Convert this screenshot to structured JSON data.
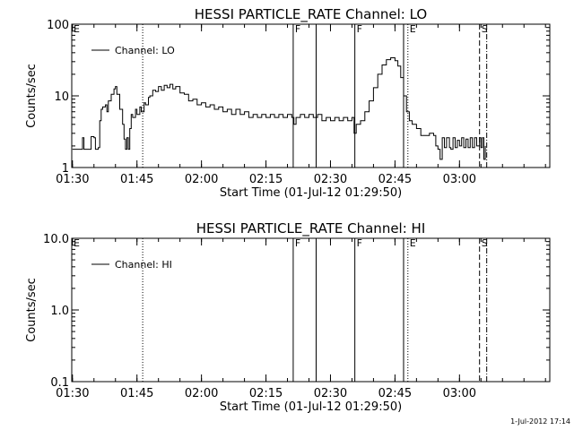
{
  "footer_timestamp": "1-Jul-2012 17:14",
  "chart_data": [
    {
      "type": "line",
      "title": "HESSI PARTICLE_RATE Channel: LO",
      "xlabel": "Start Time (01-Jul-12 01:29:50)",
      "ylabel": "Counts/sec",
      "yscale": "log",
      "ylim": [
        1,
        100
      ],
      "xlim": [
        "01:29:50",
        "03:21:00"
      ],
      "x_ticks": [
        "01:30",
        "01:45",
        "02:00",
        "02:15",
        "02:30",
        "02:45",
        "03:00"
      ],
      "y_ticks": [
        "1",
        "10",
        "100"
      ],
      "legend": {
        "label": "Channel: LO",
        "position": "top-left"
      },
      "series": [
        {
          "name": "Channel: LO",
          "points": [
            [
              "01:30:00",
              1.8
            ],
            [
              "01:31:00",
              1.8
            ],
            [
              "01:32:00",
              1.8
            ],
            [
              "01:32:20",
              2.6
            ],
            [
              "01:32:40",
              1.8
            ],
            [
              "01:34:00",
              1.8
            ],
            [
              "01:34:20",
              2.7
            ],
            [
              "01:35:00",
              2.6
            ],
            [
              "01:35:20",
              1.8
            ],
            [
              "01:36:00",
              1.9
            ],
            [
              "01:36:20",
              4.5
            ],
            [
              "01:36:40",
              6.5
            ],
            [
              "01:37:00",
              7.0
            ],
            [
              "01:37:40",
              7.5
            ],
            [
              "01:38:00",
              6.0
            ],
            [
              "01:38:20",
              8.5
            ],
            [
              "01:39:00",
              10.5
            ],
            [
              "01:39:40",
              12.5
            ],
            [
              "01:40:00",
              13.5
            ],
            [
              "01:40:20",
              10.5
            ],
            [
              "01:41:00",
              6.5
            ],
            [
              "01:41:40",
              4.0
            ],
            [
              "01:42:00",
              2.5
            ],
            [
              "01:42:20",
              1.8
            ],
            [
              "01:42:40",
              2.6
            ],
            [
              "01:43:00",
              1.8
            ],
            [
              "01:43:20",
              3.5
            ],
            [
              "01:43:40",
              5.5
            ],
            [
              "01:44:00",
              5.0
            ],
            [
              "01:44:40",
              6.5
            ],
            [
              "01:45:00",
              5.5
            ],
            [
              "01:45:40",
              7.0
            ],
            [
              "01:46:00",
              6.0
            ],
            [
              "01:46:40",
              8.0
            ],
            [
              "01:47:00",
              7.5
            ],
            [
              "01:47:40",
              9.5
            ],
            [
              "01:48:00",
              10.0
            ],
            [
              "01:48:40",
              12.0
            ],
            [
              "01:49:20",
              11.5
            ],
            [
              "01:50:00",
              13.5
            ],
            [
              "01:50:40",
              12.0
            ],
            [
              "01:51:20",
              14.0
            ],
            [
              "01:52:00",
              13.0
            ],
            [
              "01:52:40",
              14.5
            ],
            [
              "01:53:20",
              12.5
            ],
            [
              "01:54:00",
              13.5
            ],
            [
              "01:55:00",
              11.0
            ],
            [
              "01:56:00",
              10.5
            ],
            [
              "01:57:00",
              8.5
            ],
            [
              "01:58:00",
              9.0
            ],
            [
              "01:59:00",
              7.5
            ],
            [
              "02:00:00",
              8.0
            ],
            [
              "02:01:00",
              7.0
            ],
            [
              "02:02:00",
              7.5
            ],
            [
              "02:03:00",
              6.5
            ],
            [
              "02:04:00",
              7.0
            ],
            [
              "02:05:00",
              6.0
            ],
            [
              "02:06:00",
              6.5
            ],
            [
              "02:07:00",
              5.5
            ],
            [
              "02:08:00",
              6.5
            ],
            [
              "02:09:00",
              5.5
            ],
            [
              "02:10:00",
              6.0
            ],
            [
              "02:11:00",
              5.0
            ],
            [
              "02:12:00",
              5.5
            ],
            [
              "02:13:00",
              5.0
            ],
            [
              "02:14:00",
              5.5
            ],
            [
              "02:15:00",
              5.0
            ],
            [
              "02:16:00",
              5.5
            ],
            [
              "02:17:00",
              5.0
            ],
            [
              "02:18:00",
              5.5
            ],
            [
              "02:19:00",
              5.0
            ],
            [
              "02:20:00",
              5.5
            ],
            [
              "02:21:00",
              5.0
            ],
            [
              "02:21:30",
              4.0
            ],
            [
              "02:22:00",
              5.0
            ],
            [
              "02:23:00",
              5.5
            ],
            [
              "02:24:00",
              5.0
            ],
            [
              "02:25:00",
              5.5
            ],
            [
              "02:26:00",
              5.0
            ],
            [
              "02:27:00",
              5.5
            ],
            [
              "02:28:00",
              4.5
            ],
            [
              "02:29:00",
              5.0
            ],
            [
              "02:30:00",
              4.5
            ],
            [
              "02:31:00",
              5.0
            ],
            [
              "02:32:00",
              4.5
            ],
            [
              "02:33:00",
              5.0
            ],
            [
              "02:34:00",
              4.5
            ],
            [
              "02:35:00",
              5.0
            ],
            [
              "02:35:30",
              3.0
            ],
            [
              "02:36:00",
              4.0
            ],
            [
              "02:37:00",
              4.5
            ],
            [
              "02:38:00",
              6.0
            ],
            [
              "02:39:00",
              8.5
            ],
            [
              "02:40:00",
              13.0
            ],
            [
              "02:41:00",
              20.0
            ],
            [
              "02:42:00",
              27.0
            ],
            [
              "02:43:00",
              32.0
            ],
            [
              "02:44:00",
              34.0
            ],
            [
              "02:45:00",
              31.0
            ],
            [
              "02:45:40",
              26.0
            ],
            [
              "02:46:20",
              18.0
            ],
            [
              "02:47:00",
              10.0
            ],
            [
              "02:47:40",
              6.0
            ],
            [
              "02:48:20",
              4.5
            ],
            [
              "02:49:00",
              4.0
            ],
            [
              "02:50:00",
              3.5
            ],
            [
              "02:51:00",
              2.8
            ],
            [
              "02:52:00",
              2.8
            ],
            [
              "02:53:00",
              3.0
            ],
            [
              "02:54:00",
              2.8
            ],
            [
              "02:54:30",
              2.0
            ],
            [
              "02:55:00",
              1.8
            ],
            [
              "02:55:30",
              1.3
            ],
            [
              "02:56:00",
              2.6
            ],
            [
              "02:56:30",
              1.9
            ],
            [
              "02:57:00",
              2.6
            ],
            [
              "02:57:40",
              1.9
            ],
            [
              "02:58:00",
              1.8
            ],
            [
              "02:58:30",
              2.6
            ],
            [
              "02:59:00",
              1.9
            ],
            [
              "02:59:30",
              2.4
            ],
            [
              "03:00:00",
              2.0
            ],
            [
              "03:00:30",
              2.6
            ],
            [
              "03:01:00",
              1.9
            ],
            [
              "03:01:30",
              2.5
            ],
            [
              "03:02:00",
              1.9
            ],
            [
              "03:02:30",
              2.6
            ],
            [
              "03:03:00",
              1.9
            ],
            [
              "03:03:30",
              2.6
            ],
            [
              "03:04:00",
              2.0
            ],
            [
              "03:04:40",
              2.6
            ],
            [
              "03:05:00",
              1.9
            ],
            [
              "03:05:20",
              2.6
            ],
            [
              "03:05:40",
              1.3
            ],
            [
              "03:06:00",
              2.0
            ]
          ]
        }
      ],
      "markers": [
        {
          "time": "01:46:20",
          "style": "dotted",
          "label": ""
        },
        {
          "time": "02:21:20",
          "style": "solid",
          "label": "F"
        },
        {
          "time": "02:26:40",
          "style": "solid",
          "label": ""
        },
        {
          "time": "02:35:40",
          "style": "solid",
          "label": "F"
        },
        {
          "time": "02:47:00",
          "style": "solid",
          "label": ""
        },
        {
          "time": "02:48:00",
          "style": "dotted",
          "label": "E"
        },
        {
          "time": "03:04:40",
          "style": "dashed",
          "label": "S"
        },
        {
          "time": "03:06:20",
          "style": "dash-dot",
          "label": ""
        }
      ],
      "corner_labels": [
        "E"
      ]
    },
    {
      "type": "line",
      "title": "HESSI PARTICLE_RATE Channel: HI",
      "xlabel": "Start Time (01-Jul-12 01:29:50)",
      "ylabel": "Counts/sec",
      "yscale": "log",
      "ylim": [
        0.1,
        10
      ],
      "xlim": [
        "01:29:50",
        "03:21:00"
      ],
      "x_ticks": [
        "01:30",
        "01:45",
        "02:00",
        "02:15",
        "02:30",
        "02:45",
        "03:00"
      ],
      "y_ticks": [
        "0.1",
        "1.0",
        "10.0"
      ],
      "legend": {
        "label": "Channel: HI",
        "position": "top-left"
      },
      "series": [
        {
          "name": "Channel: HI",
          "points": []
        }
      ],
      "markers": [
        {
          "time": "01:46:20",
          "style": "dotted",
          "label": ""
        },
        {
          "time": "02:21:20",
          "style": "solid",
          "label": "F"
        },
        {
          "time": "02:26:40",
          "style": "solid",
          "label": ""
        },
        {
          "time": "02:35:40",
          "style": "solid",
          "label": "F"
        },
        {
          "time": "02:47:00",
          "style": "solid",
          "label": ""
        },
        {
          "time": "02:48:00",
          "style": "dotted",
          "label": "E"
        },
        {
          "time": "03:04:40",
          "style": "dashed",
          "label": "S"
        },
        {
          "time": "03:06:20",
          "style": "dash-dot",
          "label": ""
        }
      ],
      "corner_labels": [
        "E"
      ]
    }
  ]
}
